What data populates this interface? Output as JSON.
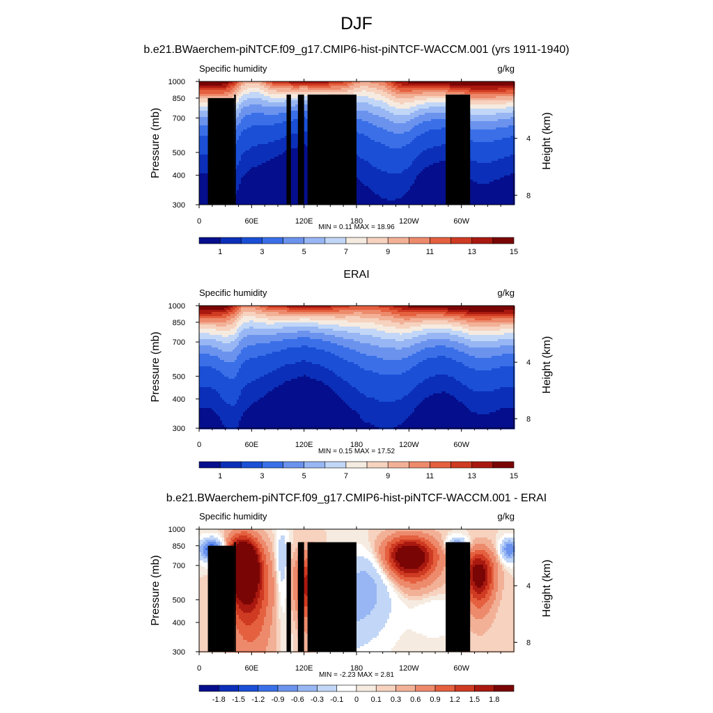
{
  "figure": {
    "title": "DJF",
    "colors": {
      "abs": [
        "#050e8c",
        "#0b2fb8",
        "#1a4fd6",
        "#3a6fe8",
        "#6b93ee",
        "#97b6f3",
        "#c2d7f7",
        "#f6ebe0",
        "#f6d2bf",
        "#f2b197",
        "#ed8a6c",
        "#e4603f",
        "#cf3a22",
        "#a9190f",
        "#7a0505"
      ],
      "diff": [
        "#050e8c",
        "#0b2fb8",
        "#1a4fd6",
        "#3a6fe8",
        "#6b93ee",
        "#97b6f3",
        "#c2d7f7",
        "#ffffff",
        "#f6ebe0",
        "#f6d2bf",
        "#f2b197",
        "#ed8a6c",
        "#e4603f",
        "#cf3a22",
        "#a9190f",
        "#7a0505"
      ]
    }
  },
  "chart_data": [
    {
      "type": "heatmap",
      "title": "b.e21.BWaerchem-piNTCF.f09_g17.CMIP6-hist-piNTCF-WACCM.001 (yrs 1911-1940)",
      "left_label": "Specific humidity",
      "right_label": "g/kg",
      "ylabel": "Pressure (mb)",
      "ylabel_right": "Height (km)",
      "xticks": [
        "0",
        "60E",
        "120E",
        "180",
        "120W",
        "60W"
      ],
      "yticks": [
        "300",
        "400",
        "500",
        "700",
        "850",
        "1000"
      ],
      "yticks_right": [
        "8",
        "4"
      ],
      "xlim": [
        0,
        360
      ],
      "ylim": [
        1000,
        300
      ],
      "min_max": "MIN =   0.11  MAX =   18.96",
      "colorbar": {
        "levels": [
          0.5,
          1,
          2,
          3,
          4,
          5,
          6,
          7,
          8,
          9,
          10,
          11,
          12,
          13,
          14,
          15
        ],
        "tick_labels": [
          "1",
          "3",
          "5",
          "7",
          "9",
          "11",
          "13",
          "15"
        ]
      },
      "topography": [
        [
          10,
          40,
          850
        ],
        [
          40,
          42,
          880
        ],
        [
          100,
          105,
          880
        ],
        [
          113,
          120,
          880
        ],
        [
          124,
          180,
          880
        ],
        [
          282,
          310,
          880
        ]
      ],
      "q_surface": [
        15.5,
        15.5,
        15.0,
        14.0,
        12.0,
        9.0,
        8.5,
        9.0,
        11.0,
        12.0,
        12.5,
        13.0,
        13.0,
        13.0,
        13.0,
        12.5,
        12.0,
        11.0,
        9.5,
        9.0,
        9.5,
        10.0,
        11.5,
        13.0,
        13.5,
        13.5,
        14.0,
        14.0,
        14.5,
        15.0,
        15.0,
        15.5,
        15.5,
        15.5,
        15.5,
        15.5,
        15.5
      ],
      "q_decay": [
        0.26,
        0.26,
        0.28,
        0.33,
        0.36,
        0.32,
        0.3,
        0.28,
        0.25,
        0.23,
        0.21,
        0.2,
        0.19,
        0.2,
        0.21,
        0.23,
        0.26,
        0.29,
        0.32,
        0.35,
        0.37,
        0.38,
        0.37,
        0.35,
        0.32,
        0.28,
        0.25,
        0.24,
        0.23,
        0.24,
        0.26,
        0.28,
        0.29,
        0.29,
        0.28,
        0.27,
        0.26
      ]
    },
    {
      "type": "heatmap",
      "title": "ERAI",
      "left_label": "Specific humidity",
      "right_label": "g/kg",
      "ylabel": "Pressure (mb)",
      "ylabel_right": "Height (km)",
      "xticks": [
        "0",
        "60E",
        "120E",
        "180",
        "120W",
        "60W"
      ],
      "yticks": [
        "300",
        "400",
        "500",
        "700",
        "850",
        "1000"
      ],
      "yticks_right": [
        "8",
        "4"
      ],
      "xlim": [
        0,
        360
      ],
      "ylim": [
        1000,
        300
      ],
      "min_max": "MIN =   0.15  MAX =   17.52",
      "colorbar": {
        "levels": [
          0.5,
          1,
          2,
          3,
          4,
          5,
          6,
          7,
          8,
          9,
          10,
          11,
          12,
          13,
          14,
          15
        ],
        "tick_labels": [
          "1",
          "3",
          "5",
          "7",
          "9",
          "11",
          "13",
          "15"
        ]
      },
      "topography": [],
      "q_surface": [
        15.5,
        15.5,
        15.0,
        14.0,
        12.0,
        9.5,
        9.5,
        10.5,
        11.5,
        12.0,
        12.5,
        13.0,
        13.0,
        13.0,
        13.0,
        12.5,
        12.0,
        11.5,
        11.0,
        11.0,
        11.0,
        11.5,
        12.0,
        13.0,
        13.5,
        13.5,
        14.0,
        14.0,
        14.5,
        15.0,
        15.0,
        15.5,
        15.5,
        15.5,
        15.5,
        15.5,
        15.5
      ],
      "q_decay": [
        0.29,
        0.29,
        0.31,
        0.36,
        0.4,
        0.36,
        0.33,
        0.3,
        0.27,
        0.25,
        0.23,
        0.22,
        0.21,
        0.22,
        0.23,
        0.25,
        0.28,
        0.31,
        0.34,
        0.37,
        0.38,
        0.39,
        0.38,
        0.36,
        0.33,
        0.3,
        0.27,
        0.26,
        0.25,
        0.26,
        0.28,
        0.3,
        0.31,
        0.31,
        0.3,
        0.29,
        0.29
      ]
    },
    {
      "type": "heatmap",
      "title": "b.e21.BWaerchem-piNTCF.f09_g17.CMIP6-hist-piNTCF-WACCM.001 - ERAI",
      "left_label": "Specific humidity",
      "right_label": "g/kg",
      "ylabel": "Pressure (mb)",
      "ylabel_right": "Height (km)",
      "xticks": [
        "0",
        "60E",
        "120E",
        "180",
        "120W",
        "60W"
      ],
      "yticks": [
        "300",
        "400",
        "500",
        "700",
        "850",
        "1000"
      ],
      "yticks_right": [
        "8",
        "4"
      ],
      "xlim": [
        0,
        360
      ],
      "ylim": [
        1000,
        300
      ],
      "min_max": "MIN =  -2.23  MAX =   2.81",
      "colorbar": {
        "levels": [
          -2.1,
          -1.8,
          -1.5,
          -1.2,
          -0.9,
          -0.6,
          -0.3,
          -0.1,
          0,
          0.1,
          0.3,
          0.6,
          0.9,
          1.2,
          1.5,
          1.8,
          2.1
        ],
        "tick_labels": [
          "-1.8",
          "-1.5",
          "-1.2",
          "-0.9",
          "-0.6",
          "-0.3",
          "-0.1",
          "0",
          "0.1",
          "0.3",
          "0.6",
          "0.9",
          "1.2",
          "1.5",
          "1.8"
        ]
      },
      "topography": [
        [
          10,
          40,
          850
        ],
        [
          40,
          42,
          880
        ],
        [
          100,
          105,
          880
        ],
        [
          113,
          120,
          880
        ],
        [
          124,
          180,
          880
        ],
        [
          282,
          310,
          880
        ]
      ],
      "anomalies": [
        [
          50,
          720,
          2.8,
          18,
          200
        ],
        [
          15,
          820,
          -1.5,
          15,
          90
        ],
        [
          125,
          560,
          1.5,
          15,
          200
        ],
        [
          60,
          520,
          1.0,
          25,
          250
        ],
        [
          240,
          760,
          2.2,
          30,
          160
        ],
        [
          320,
          640,
          1.8,
          17,
          170
        ],
        [
          355,
          820,
          -1.2,
          10,
          90
        ],
        [
          295,
          860,
          -0.9,
          12,
          70
        ],
        [
          160,
          420,
          -0.5,
          50,
          150
        ],
        [
          195,
          620,
          -0.7,
          35,
          200
        ],
        [
          95,
          740,
          -0.6,
          7,
          250
        ],
        [
          270,
          430,
          -0.3,
          25,
          80
        ]
      ]
    }
  ]
}
